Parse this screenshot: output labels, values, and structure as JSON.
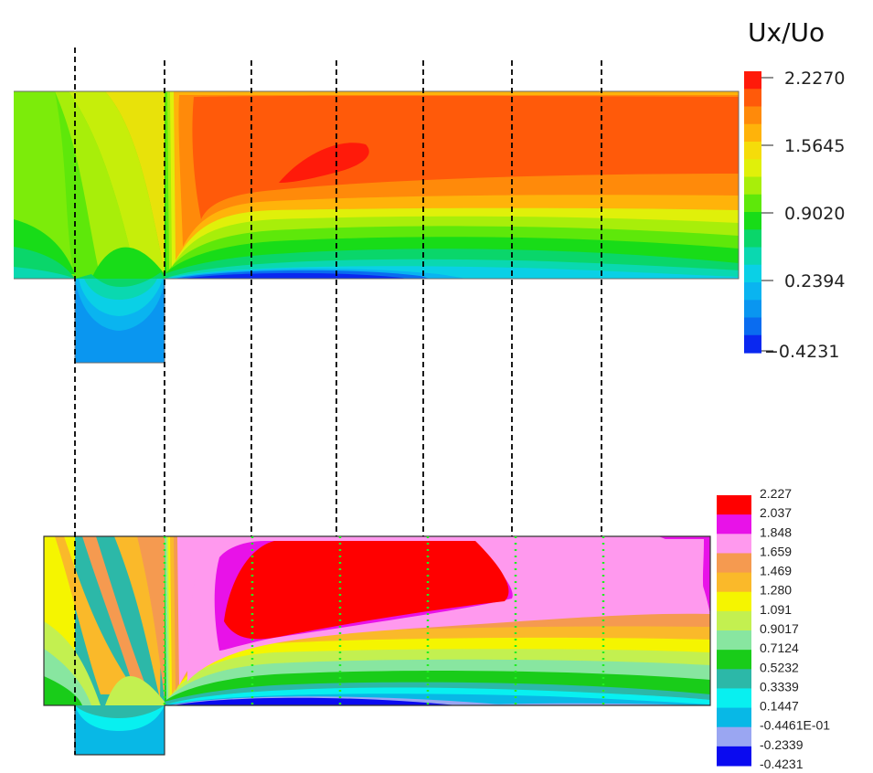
{
  "top_panel": {
    "legend_title": "Ux/Uo",
    "legend_labels": [
      "2.2270",
      "1.5645",
      "0.9020",
      "0.2394",
      "−0.4231"
    ],
    "legend_colors": [
      "#ff1a0a",
      "#ff5a0a",
      "#ff8a0a",
      "#ffb30a",
      "#f5dc0a",
      "#e0f00a",
      "#a8ee0a",
      "#5ee80a",
      "#18dc18",
      "#0ad66a",
      "#0ad8b0",
      "#0ad0e6",
      "#0ab4f0",
      "#0a96f0",
      "#0a6cf0",
      "#0a28f0"
    ]
  },
  "bottom_panel": {
    "legend_labels": [
      "2.227",
      "2.037",
      "1.848",
      "1.659",
      "1.469",
      "1.280",
      "1.091",
      "0.9017",
      "0.7124",
      "0.5232",
      "0.3339",
      "0.1447",
      "-0.4461E-01",
      "-0.2339",
      "-0.4231"
    ],
    "legend_colors": [
      "#ff0000",
      "#e812e8",
      "#ff99ee",
      "#f59a50",
      "#fab92a",
      "#f5f500",
      "#c3f050",
      "#88e6a0",
      "#19cc19",
      "#2cb8a8",
      "#08f0f0",
      "#08b8e6",
      "#9aa6f2",
      "#0a0af0"
    ]
  }
}
